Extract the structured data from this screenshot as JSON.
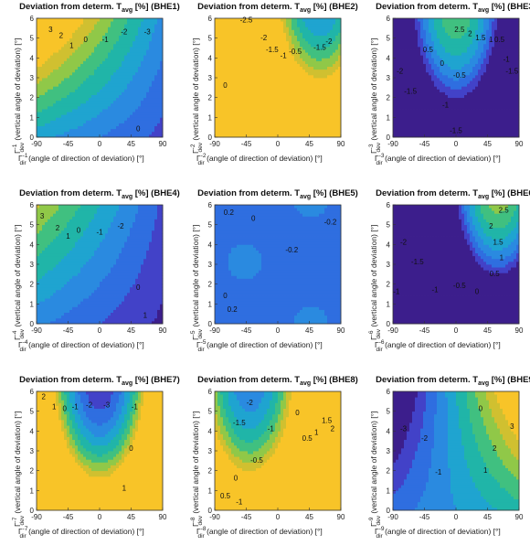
{
  "chart_data": [
    {
      "type": "contour",
      "title_main": "Deviation from determ. T",
      "title_sub": "avg",
      "title_tail": " [%] (BHE1)",
      "xlabel_sym": "Γ",
      "xlabel_sup": "-1",
      "xlabel_sub": "dir",
      "xlabel_text": " (angle of direction of deviation) [°]",
      "ylabel_sym": "Γ",
      "ylabel_sup": "-1",
      "ylabel_sub": "dev",
      "ylabel_text": " (vertical angle of deviation) [°]",
      "xticks": [
        "-90",
        "-45",
        "0",
        "45",
        "90"
      ],
      "yticks": [
        "0",
        "1",
        "2",
        "3",
        "4",
        "5",
        "6"
      ],
      "xlim": [
        -90,
        90
      ],
      "ylim": [
        0,
        6
      ],
      "levels": [
        {
          "v": "3",
          "x": -70,
          "y": 5.3
        },
        {
          "v": "2",
          "x": -55,
          "y": 5.0
        },
        {
          "v": "1",
          "x": -40,
          "y": 4.5
        },
        {
          "v": "0",
          "x": -20,
          "y": 4.8
        },
        {
          "v": "-1",
          "x": 8,
          "y": 4.8
        },
        {
          "v": "-2",
          "x": 35,
          "y": 5.2
        },
        {
          "v": "-3",
          "x": 68,
          "y": 5.2
        },
        {
          "v": "0",
          "x": 55,
          "y": 0.3
        }
      ]
    },
    {
      "type": "contour",
      "title_main": "Deviation from determ. T",
      "title_sub": "avg",
      "title_tail": " [%] (BHE2)",
      "xlabel_sym": "Γ",
      "xlabel_sup": "-2",
      "xlabel_sub": "dir",
      "xlabel_text": " (angle of direction of deviation) [°]",
      "ylabel_sym": "Γ",
      "ylabel_sup": "-2",
      "ylabel_sub": "dev",
      "ylabel_text": " (vertical angle of deviation) [°]",
      "xticks": [
        "-90",
        "-45",
        "0",
        "45",
        "90"
      ],
      "yticks": [
        "0",
        "1",
        "2",
        "3",
        "4",
        "5",
        "6"
      ],
      "xlim": [
        -90,
        90
      ],
      "ylim": [
        0,
        6
      ],
      "levels": [
        {
          "v": "-2.5",
          "x": -45,
          "y": 5.8
        },
        {
          "v": "-2",
          "x": -20,
          "y": 4.9
        },
        {
          "v": "-1.5",
          "x": -8,
          "y": 4.3
        },
        {
          "v": "-1",
          "x": 8,
          "y": 4.0
        },
        {
          "v": "-0.5",
          "x": 25,
          "y": 4.2
        },
        {
          "v": "-1.5",
          "x": 60,
          "y": 4.4
        },
        {
          "v": "-2",
          "x": 73,
          "y": 4.7
        },
        {
          "v": "0",
          "x": -75,
          "y": 2.5
        }
      ]
    },
    {
      "type": "contour",
      "title_main": "Deviation from determ. T",
      "title_sub": "avg",
      "title_tail": " [%] (BHE3)",
      "xlabel_sym": "Γ",
      "xlabel_sup": "-3",
      "xlabel_sub": "dir",
      "xlabel_text": " (angle of direction of deviation) [°]",
      "ylabel_sym": "Γ",
      "ylabel_sup": "-3",
      "ylabel_sub": "dev",
      "ylabel_text": " (vertical angle of deviation) [°]",
      "xticks": [
        "-90",
        "-45",
        "0",
        "45",
        "90"
      ],
      "yticks": [
        "0",
        "1",
        "2",
        "3",
        "4",
        "5",
        "6"
      ],
      "xlim": [
        -90,
        90
      ],
      "ylim": [
        0,
        6
      ],
      "levels": [
        {
          "v": "2.5",
          "x": 5,
          "y": 5.3
        },
        {
          "v": "2",
          "x": 20,
          "y": 5.1
        },
        {
          "v": "1.5",
          "x": 35,
          "y": 4.9
        },
        {
          "v": "1",
          "x": 50,
          "y": 4.8
        },
        {
          "v": "0.5",
          "x": 62,
          "y": 4.8
        },
        {
          "v": "0.5",
          "x": -40,
          "y": 4.3
        },
        {
          "v": "0",
          "x": -20,
          "y": 3.6
        },
        {
          "v": "-0.5",
          "x": 5,
          "y": 3.0
        },
        {
          "v": "-1",
          "x": -15,
          "y": 1.5
        },
        {
          "v": "-1.5",
          "x": -65,
          "y": 2.2
        },
        {
          "v": "-2",
          "x": -80,
          "y": 3.2
        },
        {
          "v": "-1.5",
          "x": 80,
          "y": 3.2
        },
        {
          "v": "-1",
          "x": 72,
          "y": 3.8
        },
        {
          "v": "-1.5",
          "x": 0,
          "y": 0.2
        }
      ]
    },
    {
      "type": "contour",
      "title_main": "Deviation from determ. T",
      "title_sub": "avg",
      "title_tail": " [%] (BHE4)",
      "xlabel_sym": "Γ",
      "xlabel_sup": "-4",
      "xlabel_sub": "dir",
      "xlabel_text": " (angle of direction of deviation) [°]",
      "ylabel_sym": "Γ",
      "ylabel_sup": "-4",
      "ylabel_sub": "dev",
      "ylabel_text": " (vertical angle of deviation) [°]",
      "xticks": [
        "-90",
        "-45",
        "0",
        "45",
        "90"
      ],
      "yticks": [
        "0",
        "1",
        "2",
        "3",
        "4",
        "5",
        "6"
      ],
      "xlim": [
        -90,
        90
      ],
      "ylim": [
        0,
        6
      ],
      "levels": [
        {
          "v": "3",
          "x": -82,
          "y": 5.3
        },
        {
          "v": "2",
          "x": -60,
          "y": 4.7
        },
        {
          "v": "1",
          "x": -45,
          "y": 4.3
        },
        {
          "v": "0",
          "x": -30,
          "y": 4.6
        },
        {
          "v": "-1",
          "x": 0,
          "y": 4.5
        },
        {
          "v": "-2",
          "x": 30,
          "y": 4.8
        },
        {
          "v": "0",
          "x": 55,
          "y": 1.7
        },
        {
          "v": "1",
          "x": 65,
          "y": 0.3
        }
      ]
    },
    {
      "type": "contour",
      "title_main": "Deviation from determ. T",
      "title_sub": "avg",
      "title_tail": " [%] (BHE5)",
      "xlabel_sym": "Γ",
      "xlabel_sup": "-5",
      "xlabel_sub": "dir",
      "xlabel_text": " (angle of direction of deviation) [°]",
      "ylabel_sym": "Γ",
      "ylabel_sup": "-5",
      "ylabel_sub": "dev",
      "ylabel_text": " (vertical angle of deviation) [°]",
      "xticks": [
        "-90",
        "-45",
        "0",
        "45",
        "90"
      ],
      "yticks": [
        "0",
        "1",
        "2",
        "3",
        "4",
        "5",
        "6"
      ],
      "xlim": [
        -90,
        90
      ],
      "ylim": [
        0,
        6
      ],
      "levels": [
        {
          "v": "0.2",
          "x": -70,
          "y": 5.5
        },
        {
          "v": "0",
          "x": -35,
          "y": 5.2
        },
        {
          "v": "-0.2",
          "x": 20,
          "y": 3.6
        },
        {
          "v": "-0.2",
          "x": 75,
          "y": 5.0
        },
        {
          "v": "0",
          "x": -75,
          "y": 1.3
        },
        {
          "v": "0.2",
          "x": -65,
          "y": 0.6
        }
      ]
    },
    {
      "type": "contour",
      "title_main": "Deviation from determ. T",
      "title_sub": "avg",
      "title_tail": " [%] (BHE6)",
      "xlabel_sym": "Γ",
      "xlabel_sup": "-6",
      "xlabel_sub": "dir",
      "xlabel_text": " (angle of direction of deviation) [°]",
      "ylabel_sym": "Γ",
      "ylabel_sup": "-6",
      "ylabel_sub": "dev",
      "ylabel_text": " (vertical angle of deviation) [°]",
      "xticks": [
        "-90",
        "-45",
        "0",
        "45",
        "90"
      ],
      "yticks": [
        "0",
        "1",
        "2",
        "3",
        "4",
        "5",
        "6"
      ],
      "xlim": [
        -90,
        90
      ],
      "ylim": [
        0,
        6
      ],
      "levels": [
        {
          "v": "2.5",
          "x": 68,
          "y": 5.6
        },
        {
          "v": "2",
          "x": 50,
          "y": 4.8
        },
        {
          "v": "1.5",
          "x": 60,
          "y": 4.0
        },
        {
          "v": "1",
          "x": 65,
          "y": 3.2
        },
        {
          "v": "0.5",
          "x": 55,
          "y": 2.4
        },
        {
          "v": "0",
          "x": 30,
          "y": 1.5
        },
        {
          "v": "-0.5",
          "x": 5,
          "y": 1.8
        },
        {
          "v": "-1",
          "x": -30,
          "y": 1.6
        },
        {
          "v": "-1.5",
          "x": -55,
          "y": 3.0
        },
        {
          "v": "-2",
          "x": -75,
          "y": 4.0
        },
        {
          "v": "-1",
          "x": -85,
          "y": 1.5
        }
      ]
    },
    {
      "type": "contour",
      "title_main": "Deviation from determ. T",
      "title_sub": "avg",
      "title_tail": " [%] (BHE7)",
      "xlabel_sym": "Γ",
      "xlabel_sup": "-7",
      "xlabel_sub": "dir",
      "xlabel_text": " (angle of direction of deviation) [°]",
      "ylabel_sym": "Γ",
      "ylabel_sup": "-7",
      "ylabel_sub": "dev",
      "ylabel_text": " (vertical angle of deviation) [°]",
      "xticks": [
        "-90",
        "-45",
        "0",
        "45",
        "90"
      ],
      "yticks": [
        "0",
        "1",
        "2",
        "3",
        "4",
        "5",
        "6"
      ],
      "xlim": [
        -90,
        90
      ],
      "ylim": [
        0,
        6
      ],
      "levels": [
        {
          "v": "2",
          "x": -80,
          "y": 5.6
        },
        {
          "v": "1",
          "x": -65,
          "y": 5.1
        },
        {
          "v": "0",
          "x": -50,
          "y": 5.0
        },
        {
          "v": "-1",
          "x": -35,
          "y": 5.1
        },
        {
          "v": "-2",
          "x": -15,
          "y": 5.2
        },
        {
          "v": "-3",
          "x": 10,
          "y": 5.2
        },
        {
          "v": "-1",
          "x": 50,
          "y": 5.1
        },
        {
          "v": "0",
          "x": 45,
          "y": 3.0
        },
        {
          "v": "1",
          "x": 35,
          "y": 1.0
        }
      ]
    },
    {
      "type": "contour",
      "title_main": "Deviation from determ. T",
      "title_sub": "avg",
      "title_tail": " [%] (BHE8)",
      "xlabel_sym": "Γ",
      "xlabel_sup": "-8",
      "xlabel_sub": "dir",
      "xlabel_text": " (angle of direction of deviation) [°]",
      "ylabel_sym": "Γ",
      "ylabel_sup": "-8",
      "ylabel_sub": "dev",
      "ylabel_text": " (vertical angle of deviation) [°]",
      "xticks": [
        "-90",
        "-45",
        "0",
        "45",
        "90"
      ],
      "yticks": [
        "0",
        "1",
        "2",
        "3",
        "4",
        "5",
        "6"
      ],
      "xlim": [
        -90,
        90
      ],
      "ylim": [
        0,
        6
      ],
      "levels": [
        {
          "v": "-2",
          "x": -40,
          "y": 5.3
        },
        {
          "v": "-1.5",
          "x": -55,
          "y": 4.3
        },
        {
          "v": "-1",
          "x": -10,
          "y": 4.0
        },
        {
          "v": "0",
          "x": 28,
          "y": 4.8
        },
        {
          "v": "0.5",
          "x": 42,
          "y": 3.5
        },
        {
          "v": "1",
          "x": 55,
          "y": 3.8
        },
        {
          "v": "1.5",
          "x": 70,
          "y": 4.4
        },
        {
          "v": "2",
          "x": 78,
          "y": 4.0
        },
        {
          "v": "-0.5",
          "x": -30,
          "y": 2.4
        },
        {
          "v": "0",
          "x": -60,
          "y": 1.5
        },
        {
          "v": "0.5",
          "x": -75,
          "y": 0.6
        },
        {
          "v": "-1",
          "x": -55,
          "y": 0.3
        }
      ]
    },
    {
      "type": "contour",
      "title_main": "Deviation from determ. T",
      "title_sub": "avg",
      "title_tail": " [%] (BHE9)",
      "xlabel_sym": "Γ",
      "xlabel_sup": "-9",
      "xlabel_sub": "dir",
      "xlabel_text": " (angle of direction of deviation) [°]",
      "ylabel_sym": "Γ",
      "ylabel_sup": "-9",
      "ylabel_sub": "dev",
      "ylabel_text": " (vertical angle of deviation) [°]",
      "xticks": [
        "-90",
        "-45",
        "0",
        "45",
        "90"
      ],
      "yticks": [
        "0",
        "1",
        "2",
        "3",
        "4",
        "5",
        "6"
      ],
      "xlim": [
        -90,
        90
      ],
      "ylim": [
        0,
        6
      ],
      "levels": [
        {
          "v": "-3",
          "x": -75,
          "y": 4.0
        },
        {
          "v": "-2",
          "x": -45,
          "y": 3.5
        },
        {
          "v": "-1",
          "x": -25,
          "y": 1.8
        },
        {
          "v": "0",
          "x": 35,
          "y": 5.0
        },
        {
          "v": "1",
          "x": 42,
          "y": 1.9
        },
        {
          "v": "2",
          "x": 55,
          "y": 3.0
        },
        {
          "v": "3",
          "x": 80,
          "y": 4.1
        }
      ]
    }
  ],
  "colormap": [
    "#3c1e8c",
    "#4242c8",
    "#2f6ee0",
    "#2a8ae0",
    "#1fa4d0",
    "#20b5a8",
    "#40c080",
    "#90c848",
    "#d0c030",
    "#f8c428"
  ],
  "field_styles": [
    {
      "kind": "planar",
      "a": -0.045,
      "b": 0.5,
      "c": -0.3,
      "off": 0.3,
      "note": "BHE1: high NW, low NE"
    },
    {
      "kind": "bowl",
      "cx": 60,
      "cy": 8,
      "a": 0.06,
      "off": 0.3
    },
    {
      "kind": "ubowl",
      "cx": 0,
      "cy": 7,
      "a": 0.06,
      "off": 0.3
    },
    {
      "kind": "planar",
      "a": -0.04,
      "b": 0.3,
      "c": -0.2,
      "off": 0.2
    },
    {
      "kind": "flat",
      "val": 0.28
    },
    {
      "kind": "ubowl",
      "cx": 60,
      "cy": 7.5,
      "a": 0.07,
      "off": 0.2
    },
    {
      "kind": "bowl",
      "cx": 0,
      "cy": 7,
      "a": 0.07,
      "off": 0.1
    },
    {
      "kind": "bowl",
      "cx": -40,
      "cy": 7,
      "a": 0.06,
      "off": 0.3
    },
    {
      "kind": "planar",
      "a": 0.05,
      "b": 0.1,
      "c": 0.5,
      "off": 0.4
    }
  ]
}
